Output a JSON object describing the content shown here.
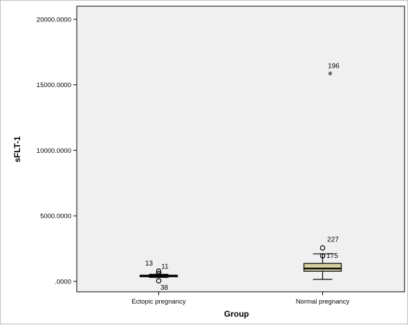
{
  "chart_data": {
    "type": "box",
    "xlabel": "Group",
    "ylabel": "sFLT-1",
    "ylim": [
      -800,
      21000
    ],
    "y_ticks": [
      {
        "value": 0,
        "label": ".0000"
      },
      {
        "value": 5000,
        "label": "5000.0000"
      },
      {
        "value": 10000,
        "label": "10000.0000"
      },
      {
        "value": 15000,
        "label": "15000.0000"
      },
      {
        "value": 20000,
        "label": "20000.0000"
      }
    ],
    "grid": false,
    "colors": {
      "plot_bg": "#f0f0f0",
      "ectopic_box": "#d6d0a0",
      "normal_box": "#d6d0a0"
    },
    "groups": [
      {
        "category": "Ectopic pregnancy",
        "whisker_low": 300,
        "q1": 350,
        "median": 410,
        "q3": 470,
        "whisker_high": 540,
        "outliers": [
          {
            "value": 780,
            "marker": "circle",
            "label": "13"
          },
          {
            "value": 600,
            "marker": "circle",
            "label": "11"
          },
          {
            "value": 40,
            "marker": "circle",
            "label": "38"
          }
        ]
      },
      {
        "category": "Normal pregnancy",
        "whisker_low": 150,
        "q1": 770,
        "median": 980,
        "q3": 1370,
        "whisker_high": 2100,
        "outliers": [
          {
            "value": 2550,
            "marker": "circle",
            "label": "227"
          },
          {
            "value": 1950,
            "marker": "circle",
            "label": "175"
          },
          {
            "value": 15800,
            "marker": "star",
            "label": "196"
          }
        ]
      }
    ]
  }
}
